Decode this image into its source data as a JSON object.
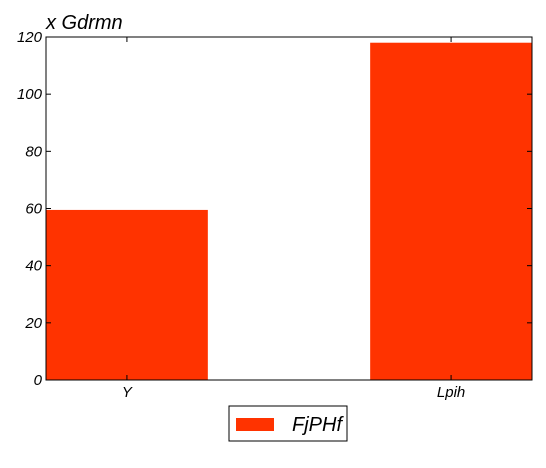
{
  "chart_data": {
    "type": "bar",
    "title": "x Gdrmn",
    "categories": [
      "Y",
      "Lpih"
    ],
    "series": [
      {
        "name": "FjPHf",
        "values": [
          59.5,
          118
        ]
      }
    ],
    "ylim": [
      0,
      120
    ],
    "yticks": [
      0,
      20,
      40,
      60,
      80,
      100,
      120
    ],
    "grid": false,
    "legend_position": "bottom-center",
    "colors": {
      "bar": "#ff3300",
      "axis": "#000000"
    }
  }
}
